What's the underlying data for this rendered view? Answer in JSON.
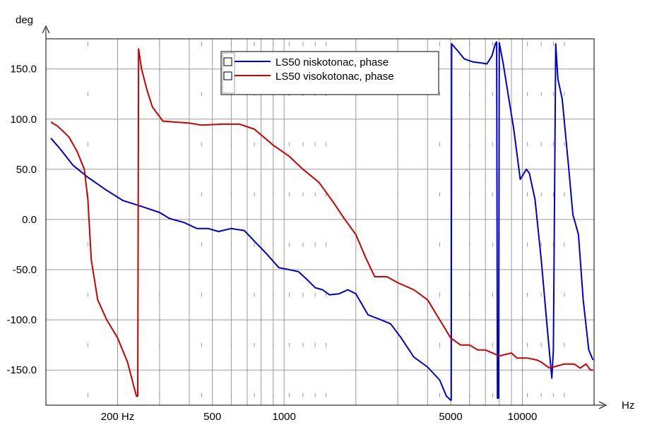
{
  "chart_data": {
    "type": "line",
    "ylabel": "deg",
    "xlabel": "Hz",
    "x_scale": "log",
    "xlim": [
      100,
      20000
    ],
    "ylim": [
      -185,
      180
    ],
    "grid": true,
    "legend_position": "top-center",
    "x_tick_labels": [
      {
        "value": 200,
        "label": "200 Hz"
      },
      {
        "value": 500,
        "label": "500"
      },
      {
        "value": 1000,
        "label": "1000"
      },
      {
        "value": 5000,
        "label": "5000"
      },
      {
        "value": 10000,
        "label": "10000"
      }
    ],
    "y_tick_labels": [
      {
        "value": 150,
        "label": "150.0"
      },
      {
        "value": 100,
        "label": "100.0"
      },
      {
        "value": 50,
        "label": "50.0"
      },
      {
        "value": 0,
        "label": "0.0"
      },
      {
        "value": -50,
        "label": "-50.0"
      },
      {
        "value": -100,
        "label": "-100.0"
      },
      {
        "value": -150,
        "label": "-150.0"
      }
    ],
    "series": [
      {
        "name": "LS50 niskotonac, phase",
        "color": "#0000cc",
        "points": [
          [
            105,
            81
          ],
          [
            115,
            70
          ],
          [
            130,
            54
          ],
          [
            150,
            42
          ],
          [
            180,
            29
          ],
          [
            210,
            19
          ],
          [
            260,
            12
          ],
          [
            300,
            7
          ],
          [
            330,
            1
          ],
          [
            380,
            -3
          ],
          [
            430,
            -9
          ],
          [
            480,
            -9
          ],
          [
            530,
            -12
          ],
          [
            600,
            -9
          ],
          [
            680,
            -11
          ],
          [
            760,
            -23
          ],
          [
            850,
            -35
          ],
          [
            950,
            -48
          ],
          [
            1050,
            -50
          ],
          [
            1150,
            -52
          ],
          [
            1250,
            -60
          ],
          [
            1350,
            -68
          ],
          [
            1450,
            -70
          ],
          [
            1550,
            -75
          ],
          [
            1700,
            -74
          ],
          [
            1850,
            -70
          ],
          [
            2000,
            -74
          ],
          [
            2250,
            -95
          ],
          [
            2550,
            -100
          ],
          [
            2800,
            -104
          ],
          [
            3100,
            -118
          ],
          [
            3500,
            -137
          ],
          [
            4000,
            -147
          ],
          [
            4500,
            -160
          ],
          [
            4800,
            -176
          ],
          [
            5000,
            -180
          ],
          [
            5030,
            -180
          ],
          [
            5050,
            175
          ],
          [
            5400,
            167
          ],
          [
            5700,
            160
          ],
          [
            6200,
            157
          ],
          [
            6700,
            156
          ],
          [
            7100,
            155
          ],
          [
            7450,
            163
          ],
          [
            7700,
            175
          ],
          [
            7800,
            177
          ],
          [
            7860,
            -178
          ],
          [
            7950,
            -178
          ],
          [
            8000,
            176
          ],
          [
            8300,
            156
          ],
          [
            9200,
            90
          ],
          [
            9800,
            40
          ],
          [
            10400,
            50
          ],
          [
            10700,
            46
          ],
          [
            11300,
            20
          ],
          [
            12000,
            -40
          ],
          [
            12800,
            -115
          ],
          [
            13300,
            -158
          ],
          [
            13500,
            -130
          ],
          [
            13800,
            175
          ],
          [
            14100,
            140
          ],
          [
            14700,
            120
          ],
          [
            15600,
            55
          ],
          [
            16300,
            5
          ],
          [
            17200,
            -15
          ],
          [
            18000,
            -80
          ],
          [
            19000,
            -130
          ],
          [
            19800,
            -140
          ]
        ]
      },
      {
        "name": "LS50 visokotonac, phase",
        "color": "#cc0000",
        "points": [
          [
            105,
            97
          ],
          [
            112,
            93
          ],
          [
            118,
            88
          ],
          [
            125,
            82
          ],
          [
            135,
            68
          ],
          [
            145,
            50
          ],
          [
            150,
            20
          ],
          [
            155,
            -40
          ],
          [
            165,
            -80
          ],
          [
            180,
            -100
          ],
          [
            200,
            -118
          ],
          [
            220,
            -142
          ],
          [
            235,
            -168
          ],
          [
            240,
            -176
          ],
          [
            243,
            -176
          ],
          [
            245,
            170
          ],
          [
            252,
            150
          ],
          [
            265,
            130
          ],
          [
            280,
            112
          ],
          [
            310,
            98
          ],
          [
            350,
            97
          ],
          [
            400,
            96
          ],
          [
            450,
            94
          ],
          [
            550,
            95
          ],
          [
            650,
            95
          ],
          [
            750,
            90
          ],
          [
            900,
            74
          ],
          [
            1050,
            63
          ],
          [
            1200,
            50
          ],
          [
            1400,
            37
          ],
          [
            1600,
            18
          ],
          [
            1800,
            0
          ],
          [
            2000,
            -15
          ],
          [
            2200,
            -38
          ],
          [
            2400,
            -57
          ],
          [
            2700,
            -57
          ],
          [
            3000,
            -63
          ],
          [
            3500,
            -70
          ],
          [
            4000,
            -80
          ],
          [
            4500,
            -100
          ],
          [
            5000,
            -118
          ],
          [
            5500,
            -125
          ],
          [
            6000,
            -125
          ],
          [
            6500,
            -130
          ],
          [
            7000,
            -130
          ],
          [
            7500,
            -133
          ],
          [
            8000,
            -136
          ],
          [
            9000,
            -133
          ],
          [
            9500,
            -138
          ],
          [
            10500,
            -138
          ],
          [
            11500,
            -140
          ],
          [
            12000,
            -142
          ],
          [
            13000,
            -148
          ],
          [
            14000,
            -146
          ],
          [
            15000,
            -144
          ],
          [
            16500,
            -144
          ],
          [
            17500,
            -148
          ],
          [
            18500,
            -144
          ],
          [
            19300,
            -150
          ],
          [
            19800,
            -150
          ]
        ]
      }
    ]
  }
}
